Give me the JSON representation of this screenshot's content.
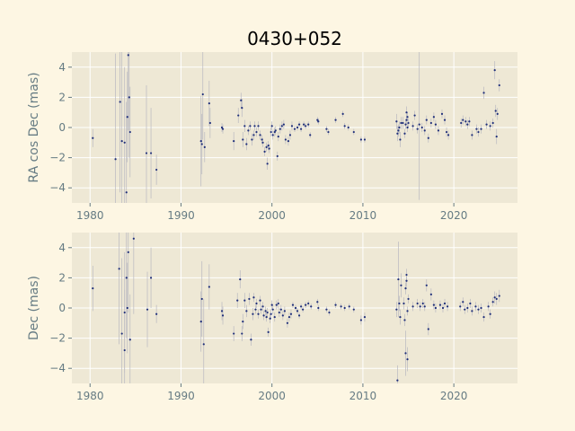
{
  "figure": {
    "title": "0430+052",
    "background": "#fdf6e3",
    "axes_facecolor": "#eee8d5",
    "grid_color": "#ffffff",
    "tick_color": "#657b83",
    "point_color": "#1f2f7a",
    "errorbar_color": "#b8b8c0"
  },
  "chart_data": [
    {
      "type": "scatter",
      "name": "ra",
      "title": "0430+052",
      "xlabel": "",
      "ylabel": "RA cos Dec (mas)",
      "xlim": [
        1978,
        2027
      ],
      "ylim": [
        -5,
        5
      ],
      "xticks": [
        1980,
        1990,
        2000,
        2010,
        2020
      ],
      "yticks": [
        -4,
        -2,
        0,
        2,
        4
      ],
      "grid": true,
      "points": [
        [
          1980.3,
          -0.7,
          0.6
        ],
        [
          1982.8,
          -2.1,
          7.0
        ],
        [
          1983.3,
          1.7,
          6.0
        ],
        [
          1983.5,
          -0.9,
          6.0
        ],
        [
          1983.8,
          -1.0,
          5.0
        ],
        [
          1984.0,
          -4.3,
          6.0
        ],
        [
          1984.1,
          0.7,
          3.0
        ],
        [
          1984.2,
          4.8,
          5.0
        ],
        [
          1984.3,
          2.0,
          4.0
        ],
        [
          1984.4,
          -0.3,
          3.0
        ],
        [
          1986.2,
          -1.7,
          4.5
        ],
        [
          1986.7,
          -1.7,
          3.0
        ],
        [
          1987.3,
          -2.8,
          1.0
        ],
        [
          1992.2,
          -0.9,
          3.0
        ],
        [
          1992.3,
          -1.1,
          2.0
        ],
        [
          1992.4,
          2.2,
          3.0
        ],
        [
          1992.6,
          -1.3,
          1.0
        ],
        [
          1993.1,
          1.6,
          1.5
        ],
        [
          1993.2,
          0.3,
          1.0
        ],
        [
          1994.5,
          0.0,
          0.3
        ],
        [
          1994.6,
          -0.1,
          0.3
        ],
        [
          1995.8,
          -0.9,
          0.6
        ],
        [
          1996.3,
          0.8,
          0.5
        ],
        [
          1996.6,
          1.8,
          0.5
        ],
        [
          1996.7,
          1.3,
          0.6
        ],
        [
          1996.8,
          -0.8,
          0.5
        ],
        [
          1997.0,
          0.1,
          0.4
        ],
        [
          1997.2,
          -1.1,
          0.4
        ],
        [
          1997.4,
          -0.2,
          0.3
        ],
        [
          1997.6,
          0.1,
          0.3
        ],
        [
          1997.8,
          -0.8,
          0.4
        ],
        [
          1998.0,
          -0.5,
          0.3
        ],
        [
          1998.1,
          0.1,
          0.3
        ],
        [
          1998.3,
          -0.3,
          0.3
        ],
        [
          1998.5,
          0.1,
          0.3
        ],
        [
          1998.7,
          -0.5,
          0.3
        ],
        [
          1998.9,
          -0.8,
          0.3
        ],
        [
          1999.0,
          -1.0,
          0.3
        ],
        [
          1999.2,
          -1.6,
          0.3
        ],
        [
          1999.4,
          -1.3,
          0.3
        ],
        [
          1999.5,
          -2.4,
          0.4
        ],
        [
          1999.6,
          -1.2,
          0.3
        ],
        [
          1999.7,
          -1.4,
          0.3
        ],
        [
          1999.9,
          -0.3,
          0.3
        ],
        [
          2000.0,
          0.1,
          0.3
        ],
        [
          2000.1,
          -0.5,
          0.3
        ],
        [
          2000.3,
          -0.3,
          0.3
        ],
        [
          2000.4,
          -0.2,
          0.3
        ],
        [
          2000.6,
          -1.9,
          0.3
        ],
        [
          2000.7,
          -0.6,
          0.3
        ],
        [
          2000.9,
          -0.1,
          0.3
        ],
        [
          2001.1,
          0.1,
          0.3
        ],
        [
          2001.3,
          0.2,
          0.3
        ],
        [
          2001.5,
          -0.8,
          0.3
        ],
        [
          2001.8,
          -0.9,
          0.3
        ],
        [
          2002.0,
          -0.5,
          0.3
        ],
        [
          2002.2,
          0.1,
          0.3
        ],
        [
          2002.5,
          -0.1,
          0.2
        ],
        [
          2002.8,
          0.0,
          0.2
        ],
        [
          2003.0,
          0.2,
          0.2
        ],
        [
          2003.2,
          -0.1,
          0.2
        ],
        [
          2003.5,
          0.2,
          0.2
        ],
        [
          2003.7,
          0.1,
          0.2
        ],
        [
          2004.0,
          0.2,
          0.2
        ],
        [
          2004.2,
          -0.5,
          0.2
        ],
        [
          2005.0,
          0.5,
          0.2
        ],
        [
          2005.1,
          0.4,
          0.2
        ],
        [
          2006.0,
          -0.1,
          0.2
        ],
        [
          2006.2,
          -0.3,
          0.2
        ],
        [
          2007.0,
          0.5,
          0.2
        ],
        [
          2007.8,
          0.9,
          0.2
        ],
        [
          2008.0,
          0.1,
          0.2
        ],
        [
          2008.4,
          0.0,
          0.2
        ],
        [
          2009.0,
          -0.3,
          0.2
        ],
        [
          2009.8,
          -0.8,
          0.2
        ],
        [
          2010.2,
          -0.8,
          0.2
        ],
        [
          2013.7,
          0.4,
          0.5
        ],
        [
          2013.8,
          -0.4,
          0.5
        ],
        [
          2013.9,
          -0.2,
          0.4
        ],
        [
          2014.0,
          0.0,
          0.4
        ],
        [
          2014.1,
          -0.8,
          0.5
        ],
        [
          2014.2,
          0.3,
          0.4
        ],
        [
          2014.4,
          0.3,
          0.4
        ],
        [
          2014.6,
          -0.4,
          0.3
        ],
        [
          2014.7,
          0.2,
          0.3
        ],
        [
          2014.8,
          0.5,
          0.3
        ],
        [
          2014.8,
          1.0,
          0.4
        ],
        [
          2014.9,
          0.7,
          0.3
        ],
        [
          2014.9,
          0.0,
          0.3
        ],
        [
          2015.0,
          0.3,
          0.3
        ],
        [
          2015.5,
          0.1,
          0.3
        ],
        [
          2015.7,
          0.8,
          0.3
        ],
        [
          2016.0,
          -0.1,
          0.3
        ],
        [
          2016.2,
          0.2,
          5.0
        ],
        [
          2016.5,
          0.0,
          0.3
        ],
        [
          2016.8,
          -0.2,
          0.3
        ],
        [
          2017.0,
          0.5,
          0.3
        ],
        [
          2017.2,
          -0.7,
          0.3
        ],
        [
          2017.5,
          0.3,
          0.3
        ],
        [
          2017.8,
          0.7,
          0.3
        ],
        [
          2018.0,
          0.2,
          0.3
        ],
        [
          2018.3,
          -0.2,
          0.3
        ],
        [
          2018.7,
          0.9,
          0.3
        ],
        [
          2019.0,
          0.5,
          0.3
        ],
        [
          2019.2,
          -0.3,
          0.3
        ],
        [
          2019.4,
          -0.5,
          0.3
        ],
        [
          2020.8,
          0.3,
          0.3
        ],
        [
          2021.0,
          0.5,
          0.3
        ],
        [
          2021.3,
          0.4,
          0.3
        ],
        [
          2021.5,
          0.2,
          0.3
        ],
        [
          2021.7,
          0.4,
          0.3
        ],
        [
          2022.0,
          -0.5,
          0.3
        ],
        [
          2022.5,
          -0.1,
          0.3
        ],
        [
          2022.7,
          -0.3,
          0.3
        ],
        [
          2023.0,
          -0.1,
          0.3
        ],
        [
          2023.3,
          2.3,
          0.4
        ],
        [
          2023.6,
          0.2,
          0.3
        ],
        [
          2024.0,
          0.1,
          0.3
        ],
        [
          2024.3,
          0.3,
          0.3
        ],
        [
          2024.5,
          3.8,
          0.6
        ],
        [
          2024.6,
          1.1,
          0.4
        ],
        [
          2024.7,
          -0.6,
          0.5
        ],
        [
          2024.8,
          0.9,
          0.4
        ],
        [
          2025.0,
          2.8,
          0.4
        ]
      ]
    },
    {
      "type": "scatter",
      "name": "dec",
      "title": "",
      "xlabel": "",
      "ylabel": "Dec (mas)",
      "xlim": [
        1978,
        2027
      ],
      "ylim": [
        -5,
        5
      ],
      "xticks": [
        1980,
        1990,
        2000,
        2010,
        2020
      ],
      "yticks": [
        -4,
        -2,
        0,
        2,
        4
      ],
      "grid": true,
      "points": [
        [
          1980.3,
          1.3,
          1.5
        ],
        [
          1983.2,
          2.6,
          5.0
        ],
        [
          1983.5,
          -1.7,
          5.0
        ],
        [
          1983.8,
          -2.8,
          4.0
        ],
        [
          1983.8,
          -0.3,
          4.0
        ],
        [
          1984.0,
          2.0,
          4.0
        ],
        [
          1984.1,
          0.0,
          3.0
        ],
        [
          1984.2,
          3.7,
          4.0
        ],
        [
          1984.4,
          -2.1,
          3.0
        ],
        [
          1984.8,
          4.6,
          5.0
        ],
        [
          1986.3,
          -0.1,
          2.5
        ],
        [
          1986.7,
          2.0,
          2.0
        ],
        [
          1987.3,
          -0.4,
          0.6
        ],
        [
          1992.2,
          -0.9,
          2.0
        ],
        [
          1992.3,
          0.6,
          2.5
        ],
        [
          1992.5,
          -2.4,
          3.0
        ],
        [
          1993.1,
          1.4,
          1.5
        ],
        [
          1994.5,
          -0.2,
          0.6
        ],
        [
          1994.6,
          -0.5,
          0.6
        ],
        [
          1995.8,
          -1.7,
          0.5
        ],
        [
          1996.2,
          0.5,
          0.5
        ],
        [
          1996.5,
          1.9,
          0.6
        ],
        [
          1996.7,
          -1.7,
          0.5
        ],
        [
          1996.8,
          -0.9,
          0.5
        ],
        [
          1997.0,
          0.5,
          0.5
        ],
        [
          1997.2,
          -0.2,
          0.4
        ],
        [
          1997.5,
          0.6,
          0.4
        ],
        [
          1997.7,
          -2.1,
          0.4
        ],
        [
          1997.9,
          -0.4,
          0.4
        ],
        [
          1998.0,
          0.7,
          0.3
        ],
        [
          1998.2,
          -0.1,
          0.3
        ],
        [
          1998.3,
          0.3,
          0.3
        ],
        [
          1998.5,
          -0.4,
          0.3
        ],
        [
          1998.7,
          0.5,
          0.3
        ],
        [
          1998.8,
          -0.1,
          0.3
        ],
        [
          1999.0,
          0.1,
          0.3
        ],
        [
          1999.1,
          -0.5,
          0.3
        ],
        [
          1999.3,
          -0.2,
          0.3
        ],
        [
          1999.4,
          -0.6,
          0.3
        ],
        [
          1999.5,
          -0.3,
          0.3
        ],
        [
          1999.6,
          -1.6,
          0.3
        ],
        [
          1999.8,
          -0.7,
          0.3
        ],
        [
          1999.9,
          -0.4,
          0.3
        ],
        [
          2000.0,
          0.2,
          0.3
        ],
        [
          2000.1,
          -0.1,
          0.3
        ],
        [
          2000.3,
          -0.6,
          0.3
        ],
        [
          2000.5,
          0.2,
          0.3
        ],
        [
          2000.7,
          0.3,
          0.3
        ],
        [
          2000.8,
          -0.3,
          0.3
        ],
        [
          2001.0,
          -0.1,
          0.3
        ],
        [
          2001.2,
          -0.5,
          0.3
        ],
        [
          2001.4,
          -0.2,
          0.3
        ],
        [
          2001.7,
          -1.0,
          0.3
        ],
        [
          2001.9,
          -0.6,
          0.3
        ],
        [
          2002.1,
          -0.4,
          0.3
        ],
        [
          2002.3,
          0.2,
          0.2
        ],
        [
          2002.6,
          0.0,
          0.2
        ],
        [
          2002.8,
          -0.2,
          0.2
        ],
        [
          2003.0,
          -0.5,
          0.2
        ],
        [
          2003.2,
          0.1,
          0.2
        ],
        [
          2003.4,
          -0.1,
          0.2
        ],
        [
          2003.7,
          0.2,
          0.2
        ],
        [
          2004.0,
          0.3,
          0.2
        ],
        [
          2004.3,
          0.1,
          0.2
        ],
        [
          2005.0,
          0.4,
          0.2
        ],
        [
          2005.1,
          0.0,
          0.2
        ],
        [
          2006.0,
          -0.1,
          0.2
        ],
        [
          2006.3,
          -0.3,
          0.2
        ],
        [
          2007.0,
          0.2,
          0.2
        ],
        [
          2007.6,
          0.1,
          0.2
        ],
        [
          2008.0,
          0.0,
          0.2
        ],
        [
          2008.5,
          0.1,
          0.2
        ],
        [
          2009.0,
          -0.1,
          0.2
        ],
        [
          2009.8,
          -0.8,
          0.3
        ],
        [
          2010.2,
          -0.6,
          0.3
        ],
        [
          2013.7,
          -0.1,
          0.5
        ],
        [
          2013.8,
          -4.8,
          1.0
        ],
        [
          2013.9,
          1.9,
          2.5
        ],
        [
          2014.0,
          0.3,
          0.5
        ],
        [
          2014.1,
          -0.6,
          0.5
        ],
        [
          2014.2,
          1.5,
          0.8
        ],
        [
          2014.5,
          0.3,
          0.4
        ],
        [
          2014.6,
          -0.8,
          0.4
        ],
        [
          2014.7,
          -3.0,
          1.5
        ],
        [
          2014.7,
          1.3,
          0.4
        ],
        [
          2014.8,
          1.8,
          0.4
        ],
        [
          2014.8,
          2.2,
          0.4
        ],
        [
          2014.9,
          -3.4,
          0.8
        ],
        [
          2014.9,
          -0.2,
          0.3
        ],
        [
          2015.0,
          0.6,
          0.3
        ],
        [
          2015.5,
          0.1,
          0.3
        ],
        [
          2016.0,
          0.3,
          0.3
        ],
        [
          2016.3,
          0.1,
          0.3
        ],
        [
          2016.6,
          0.3,
          0.3
        ],
        [
          2016.8,
          0.1,
          0.3
        ],
        [
          2017.0,
          1.5,
          0.4
        ],
        [
          2017.2,
          -1.4,
          0.4
        ],
        [
          2017.5,
          0.9,
          0.4
        ],
        [
          2017.8,
          0.2,
          0.3
        ],
        [
          2018.0,
          0.0,
          0.3
        ],
        [
          2018.5,
          0.2,
          0.3
        ],
        [
          2018.8,
          0.0,
          0.3
        ],
        [
          2019.0,
          0.3,
          0.3
        ],
        [
          2019.3,
          0.1,
          0.3
        ],
        [
          2020.7,
          0.1,
          0.3
        ],
        [
          2021.0,
          0.4,
          0.3
        ],
        [
          2021.2,
          -0.1,
          0.3
        ],
        [
          2021.5,
          0.0,
          0.3
        ],
        [
          2021.8,
          0.3,
          0.3
        ],
        [
          2022.0,
          -0.2,
          0.3
        ],
        [
          2022.4,
          0.1,
          0.3
        ],
        [
          2022.7,
          -0.1,
          0.3
        ],
        [
          2023.0,
          0.0,
          0.3
        ],
        [
          2023.3,
          -0.6,
          0.3
        ],
        [
          2023.8,
          0.1,
          0.3
        ],
        [
          2024.0,
          -0.4,
          0.3
        ],
        [
          2024.3,
          0.4,
          0.3
        ],
        [
          2024.5,
          0.7,
          0.4
        ],
        [
          2024.7,
          0.6,
          0.4
        ],
        [
          2025.0,
          0.8,
          0.4
        ]
      ]
    }
  ]
}
